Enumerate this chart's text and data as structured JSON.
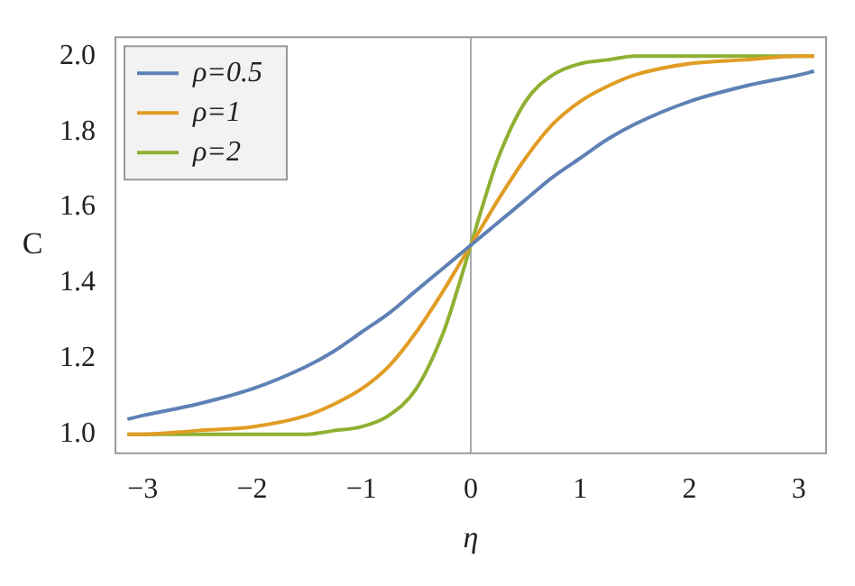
{
  "chart_data": {
    "type": "line",
    "xlabel": "η",
    "ylabel": "C",
    "x": [
      -3.14,
      -3,
      -2.5,
      -2,
      -1.5,
      -1.25,
      -1,
      -0.75,
      -0.5,
      -0.25,
      -0.125,
      0,
      0.125,
      0.25,
      0.5,
      0.75,
      1,
      1.25,
      1.5,
      2,
      2.5,
      3,
      3.14
    ],
    "series": [
      {
        "name": "ρ=0.5",
        "color": "#5e81b5",
        "values": [
          1.04,
          1.05,
          1.08,
          1.12,
          1.18,
          1.22,
          1.27,
          1.32,
          1.38,
          1.44,
          1.47,
          1.5,
          1.53,
          1.56,
          1.62,
          1.68,
          1.73,
          1.78,
          1.82,
          1.88,
          1.92,
          1.95,
          1.96
        ]
      },
      {
        "name": "ρ=1",
        "color": "#e19c24",
        "values": [
          1.0,
          1.0,
          1.01,
          1.02,
          1.05,
          1.08,
          1.12,
          1.18,
          1.27,
          1.38,
          1.44,
          1.5,
          1.56,
          1.62,
          1.73,
          1.82,
          1.88,
          1.92,
          1.95,
          1.98,
          1.99,
          2.0,
          2.0
        ]
      },
      {
        "name": "ρ=2",
        "color": "#8fb032",
        "values": [
          1.0,
          1.0,
          1.0,
          1.0,
          1.0,
          1.01,
          1.02,
          1.05,
          1.12,
          1.27,
          1.38,
          1.5,
          1.62,
          1.73,
          1.88,
          1.95,
          1.98,
          1.99,
          2.0,
          2.0,
          2.0,
          2.0,
          2.0
        ]
      }
    ],
    "xlim": [
      -3.25,
      3.25
    ],
    "xticks": [
      {
        "value": -3,
        "label": "−3"
      },
      {
        "value": -2,
        "label": "−2"
      },
      {
        "value": -1,
        "label": "−1"
      },
      0,
      1,
      2,
      3
    ],
    "ylim": [
      0.95,
      2.05
    ],
    "yticks": [
      {
        "value": 1,
        "label": "1.0"
      },
      1.2,
      1.4,
      1.6,
      1.8,
      {
        "value": 2,
        "label": "2.0"
      }
    ],
    "ref_lines": [
      {
        "axis": "x",
        "value": 0,
        "color": "#aaaaaa"
      }
    ],
    "legend": "top left",
    "grid": false,
    "marker": "none",
    "line_style": "solid"
  }
}
